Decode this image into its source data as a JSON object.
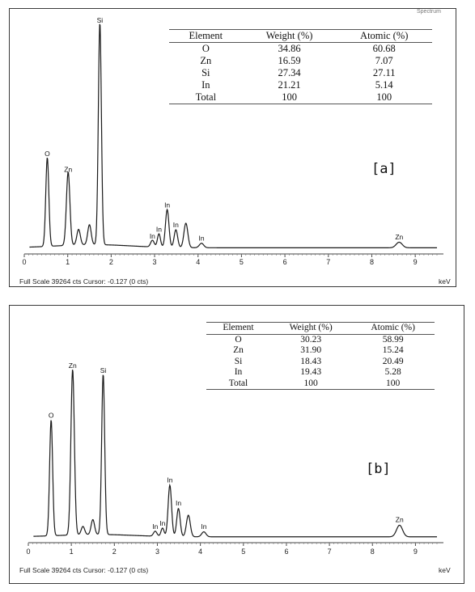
{
  "panels": [
    {
      "label": "[a]",
      "table": {
        "headers": [
          "Element",
          "Weight (%)",
          "Atomic (%)"
        ],
        "rows": [
          [
            "O",
            "34.86",
            "60.68"
          ],
          [
            "Zn",
            "16.59",
            "7.07"
          ],
          [
            "Si",
            "27.34",
            "27.11"
          ],
          [
            "In",
            "21.21",
            "5.14"
          ],
          [
            "Total",
            "100",
            "100"
          ]
        ]
      },
      "status": "Full Scale 39264 cts Cursor: -0.127  (0 cts)",
      "unit": "keV",
      "corner_text": "Spectrum"
    },
    {
      "label": "[b]",
      "table": {
        "headers": [
          "Element",
          "Weight (%)",
          "Atomic (%)"
        ],
        "rows": [
          [
            "O",
            "30.23",
            "58.99"
          ],
          [
            "Zn",
            "31.90",
            "15.24"
          ],
          [
            "Si",
            "18.43",
            "20.49"
          ],
          [
            "In",
            "19.43",
            "5.28"
          ],
          [
            "Total",
            "100",
            "100"
          ]
        ]
      },
      "status": "Full Scale 39264 cts Cursor: -0.127  (0 cts)",
      "unit": "keV"
    }
  ],
  "chart_data": [
    {
      "type": "line",
      "title": "",
      "xlabel": "keV",
      "ylabel": "",
      "xlim": [
        0,
        9.5
      ],
      "ylim": [
        0,
        100
      ],
      "x_ticks": [
        0,
        1,
        2,
        3,
        4,
        5,
        6,
        7,
        8,
        9
      ],
      "grid": false,
      "series": [
        {
          "peaks": [
            {
              "x": 0.53,
              "y": 40,
              "w": 0.035,
              "label": "O"
            },
            {
              "x": 1.01,
              "y": 33,
              "w": 0.04,
              "label": "Zn"
            },
            {
              "x": 1.25,
              "y": 7,
              "w": 0.04,
              "label": ""
            },
            {
              "x": 1.5,
              "y": 9,
              "w": 0.04,
              "label": ""
            },
            {
              "x": 1.74,
              "y": 100,
              "w": 0.035,
              "label": "Si"
            },
            {
              "x": 2.95,
              "y": 3,
              "w": 0.04,
              "label": "In"
            },
            {
              "x": 3.1,
              "y": 6,
              "w": 0.035,
              "label": "In"
            },
            {
              "x": 3.29,
              "y": 17,
              "w": 0.04,
              "label": "In"
            },
            {
              "x": 3.49,
              "y": 8,
              "w": 0.04,
              "label": "In"
            },
            {
              "x": 3.72,
              "y": 11,
              "w": 0.045,
              "label": ""
            },
            {
              "x": 4.08,
              "y": 2,
              "w": 0.05,
              "label": "In"
            },
            {
              "x": 8.63,
              "y": 2.5,
              "w": 0.07,
              "label": "Zn"
            }
          ]
        }
      ]
    },
    {
      "type": "line",
      "title": "",
      "xlabel": "keV",
      "ylabel": "",
      "xlim": [
        0,
        9.5
      ],
      "ylim": [
        0,
        100
      ],
      "x_ticks": [
        0,
        1,
        2,
        3,
        4,
        5,
        6,
        7,
        8,
        9
      ],
      "grid": false,
      "series": [
        {
          "peaks": [
            {
              "x": 0.53,
              "y": 70,
              "w": 0.035,
              "label": "O"
            },
            {
              "x": 1.03,
              "y": 100,
              "w": 0.04,
              "label": "Zn"
            },
            {
              "x": 1.27,
              "y": 5,
              "w": 0.04,
              "label": ""
            },
            {
              "x": 1.5,
              "y": 9,
              "w": 0.04,
              "label": ""
            },
            {
              "x": 1.74,
              "y": 97,
              "w": 0.035,
              "label": "Si"
            },
            {
              "x": 2.95,
              "y": 3,
              "w": 0.04,
              "label": "In"
            },
            {
              "x": 3.12,
              "y": 5,
              "w": 0.035,
              "label": "In"
            },
            {
              "x": 3.29,
              "y": 31,
              "w": 0.04,
              "label": "In"
            },
            {
              "x": 3.49,
              "y": 17,
              "w": 0.04,
              "label": "In"
            },
            {
              "x": 3.72,
              "y": 13,
              "w": 0.045,
              "label": ""
            },
            {
              "x": 4.08,
              "y": 3,
              "w": 0.05,
              "label": "In"
            },
            {
              "x": 8.63,
              "y": 7,
              "w": 0.07,
              "label": "Zn"
            }
          ]
        }
      ]
    }
  ]
}
